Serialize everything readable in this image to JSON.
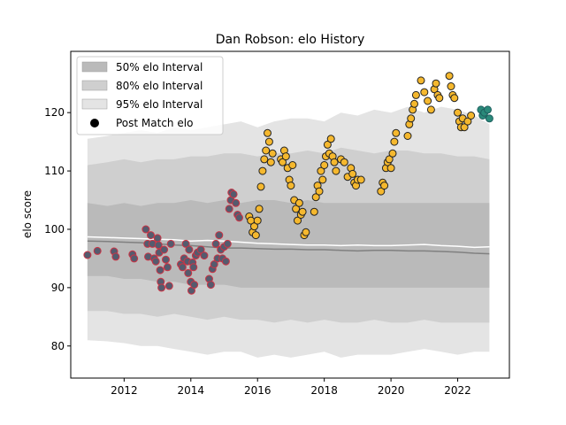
{
  "chart_data": {
    "type": "scatter",
    "title": "Dan Robson: elo History",
    "ylabel": "elo score",
    "xlabel": "",
    "xlim": [
      2010.4,
      2023.55
    ],
    "ylim": [
      74.5,
      130.5
    ],
    "x_ticks": [
      2012,
      2014,
      2016,
      2018,
      2020,
      2022
    ],
    "y_ticks": [
      80,
      90,
      100,
      110,
      120
    ],
    "legend_position": "top-left",
    "legend": [
      {
        "name": "50% elo Interval",
        "color": "#b0b0b0"
      },
      {
        "name": "80% elo Interval",
        "color": "#c8c8c8"
      },
      {
        "name": "95% elo Interval",
        "color": "#e4e4e4"
      },
      {
        "name": "Post Match elo",
        "color": "#000000"
      }
    ],
    "colors": {
      "band95": "#e4e4e4",
      "band80": "#cfcfcf",
      "band50": "#bababa",
      "mean_line": "#ffffff",
      "median_line": "#808080",
      "point_early_fill": "#555b6e",
      "point_early_edge": "#cc3344",
      "point_main_fill": "#f5b82e",
      "point_main_edge": "#222222",
      "point_late_fill": "#2a8a7a",
      "point_late_edge": "#1f5f5f"
    },
    "band_x": [
      2010.9,
      2011.5,
      2012.0,
      2012.5,
      2013.0,
      2013.5,
      2014.0,
      2014.5,
      2015.0,
      2015.5,
      2016.0,
      2016.5,
      2017.0,
      2017.5,
      2018.0,
      2018.5,
      2019.0,
      2019.5,
      2020.0,
      2020.5,
      2021.0,
      2021.5,
      2022.0,
      2022.5,
      2022.95
    ],
    "band95_upper": [
      115.5,
      116.0,
      116.5,
      117.0,
      116.5,
      117.5,
      117.0,
      117.5,
      118.0,
      118.5,
      117.5,
      118.5,
      119.0,
      119.0,
      118.5,
      120.0,
      119.5,
      120.5,
      120.0,
      121.0,
      120.0,
      121.0,
      120.5,
      119.5,
      118.0
    ],
    "band95_lower": [
      81.0,
      80.8,
      80.5,
      80.0,
      80.0,
      79.5,
      79.0,
      78.5,
      79.0,
      79.0,
      78.0,
      78.5,
      78.0,
      78.5,
      79.0,
      78.0,
      78.5,
      78.5,
      78.5,
      79.0,
      79.5,
      79.0,
      78.5,
      79.0,
      79.0
    ],
    "band80_upper": [
      111.0,
      111.5,
      112.0,
      111.5,
      112.0,
      112.0,
      112.5,
      112.5,
      113.0,
      113.0,
      112.5,
      113.0,
      113.0,
      113.5,
      113.0,
      114.0,
      113.5,
      113.0,
      113.5,
      113.5,
      113.0,
      113.0,
      112.5,
      112.5,
      112.0
    ],
    "band80_lower": [
      86.0,
      86.0,
      85.5,
      85.5,
      85.0,
      85.5,
      85.0,
      84.5,
      85.0,
      84.5,
      84.5,
      84.0,
      84.5,
      84.0,
      84.5,
      84.0,
      84.0,
      84.5,
      84.0,
      84.0,
      84.5,
      84.0,
      84.0,
      84.0,
      84.0
    ],
    "band50_upper": [
      104.5,
      104.0,
      104.5,
      104.0,
      104.5,
      104.5,
      105.0,
      104.5,
      105.0,
      104.5,
      105.0,
      105.0,
      104.5,
      105.0,
      104.5,
      104.5,
      104.5,
      104.5,
      104.5,
      104.5,
      104.5,
      104.5,
      104.5,
      104.5,
      104.5
    ],
    "band50_lower": [
      92.0,
      92.0,
      91.5,
      91.5,
      91.0,
      91.0,
      90.5,
      90.5,
      90.5,
      90.0,
      90.0,
      90.0,
      90.0,
      90.0,
      90.0,
      90.0,
      90.0,
      90.0,
      90.0,
      90.0,
      90.0,
      90.0,
      90.0,
      90.0,
      90.0
    ],
    "mean_line": [
      98.7,
      98.6,
      98.5,
      98.4,
      98.3,
      98.2,
      98.0,
      98.1,
      98.0,
      97.8,
      97.6,
      97.5,
      97.4,
      97.3,
      97.3,
      97.2,
      97.3,
      97.2,
      97.2,
      97.3,
      97.4,
      97.2,
      97.1,
      96.9,
      97.0
    ],
    "median_line": [
      98.0,
      97.9,
      97.8,
      97.7,
      97.5,
      97.3,
      97.2,
      97.0,
      96.8,
      96.8,
      96.7,
      96.6,
      96.6,
      96.5,
      96.5,
      96.4,
      96.3,
      96.4,
      96.4,
      96.3,
      96.3,
      96.2,
      96.1,
      95.9,
      95.8
    ],
    "series": [
      {
        "group": "early",
        "points": [
          [
            2010.9,
            95.6
          ],
          [
            2011.2,
            96.3
          ],
          [
            2011.7,
            96.2
          ],
          [
            2011.75,
            95.3
          ],
          [
            2012.25,
            95.7
          ],
          [
            2012.3,
            95.0
          ],
          [
            2012.65,
            100.0
          ],
          [
            2012.7,
            97.5
          ],
          [
            2012.72,
            95.3
          ],
          [
            2012.8,
            99.0
          ],
          [
            2012.85,
            97.5
          ],
          [
            2012.9,
            95.0
          ],
          [
            2012.95,
            94.5
          ],
          [
            2013.0,
            98.5
          ],
          [
            2013.03,
            97.3
          ],
          [
            2013.05,
            96.0
          ],
          [
            2013.08,
            93.0
          ],
          [
            2013.1,
            91.0
          ],
          [
            2013.12,
            90.0
          ],
          [
            2013.2,
            96.5
          ],
          [
            2013.25,
            94.8
          ],
          [
            2013.3,
            93.5
          ],
          [
            2013.35,
            90.3
          ],
          [
            2013.4,
            97.5
          ],
          [
            2013.7,
            94.0
          ],
          [
            2013.75,
            93.5
          ],
          [
            2013.8,
            95.0
          ],
          [
            2013.85,
            97.5
          ],
          [
            2013.9,
            94.5
          ],
          [
            2013.92,
            92.5
          ],
          [
            2013.95,
            96.5
          ],
          [
            2014.0,
            91.0
          ],
          [
            2014.02,
            89.5
          ],
          [
            2014.05,
            94.3
          ],
          [
            2014.08,
            93.5
          ],
          [
            2014.1,
            90.5
          ],
          [
            2014.15,
            95.5
          ],
          [
            2014.2,
            96.0
          ],
          [
            2014.3,
            96.5
          ],
          [
            2014.4,
            95.5
          ],
          [
            2014.55,
            91.5
          ],
          [
            2014.6,
            90.5
          ],
          [
            2014.65,
            93.2
          ],
          [
            2014.7,
            94.0
          ],
          [
            2014.75,
            97.5
          ],
          [
            2014.8,
            95.0
          ],
          [
            2014.85,
            99.0
          ],
          [
            2014.9,
            96.5
          ],
          [
            2014.95,
            95.0
          ],
          [
            2015.0,
            97.0
          ],
          [
            2015.05,
            94.5
          ],
          [
            2015.1,
            97.5
          ],
          [
            2015.15,
            103.5
          ],
          [
            2015.2,
            105.0
          ],
          [
            2015.22,
            106.3
          ],
          [
            2015.28,
            106.0
          ],
          [
            2015.35,
            104.5
          ],
          [
            2015.4,
            102.5
          ],
          [
            2015.45,
            102.0
          ]
        ]
      },
      {
        "group": "main",
        "points": [
          [
            2015.75,
            102.2
          ],
          [
            2015.8,
            101.5
          ],
          [
            2015.85,
            99.5
          ],
          [
            2015.9,
            100.5
          ],
          [
            2015.95,
            99.0
          ],
          [
            2016.0,
            101.5
          ],
          [
            2016.05,
            103.5
          ],
          [
            2016.1,
            107.3
          ],
          [
            2016.15,
            110.0
          ],
          [
            2016.2,
            112.0
          ],
          [
            2016.25,
            113.5
          ],
          [
            2016.3,
            116.5
          ],
          [
            2016.35,
            115.0
          ],
          [
            2016.4,
            111.5
          ],
          [
            2016.45,
            113.0
          ],
          [
            2016.7,
            112.0
          ],
          [
            2016.75,
            111.5
          ],
          [
            2016.8,
            113.5
          ],
          [
            2016.85,
            112.5
          ],
          [
            2016.9,
            110.5
          ],
          [
            2016.95,
            108.5
          ],
          [
            2017.0,
            107.5
          ],
          [
            2017.05,
            111.0
          ],
          [
            2017.1,
            105.0
          ],
          [
            2017.15,
            103.5
          ],
          [
            2017.2,
            101.5
          ],
          [
            2017.25,
            104.5
          ],
          [
            2017.3,
            102.5
          ],
          [
            2017.35,
            103.0
          ],
          [
            2017.4,
            99.0
          ],
          [
            2017.45,
            99.5
          ],
          [
            2017.7,
            103.0
          ],
          [
            2017.75,
            105.5
          ],
          [
            2017.8,
            107.5
          ],
          [
            2017.85,
            106.5
          ],
          [
            2017.9,
            110.0
          ],
          [
            2017.95,
            108.5
          ],
          [
            2018.0,
            111.0
          ],
          [
            2018.05,
            112.5
          ],
          [
            2018.1,
            114.5
          ],
          [
            2018.15,
            113.0
          ],
          [
            2018.2,
            115.5
          ],
          [
            2018.25,
            112.5
          ],
          [
            2018.3,
            111.5
          ],
          [
            2018.35,
            110.0
          ],
          [
            2018.5,
            112.0
          ],
          [
            2018.6,
            111.5
          ],
          [
            2018.7,
            109.0
          ],
          [
            2018.8,
            110.5
          ],
          [
            2018.85,
            109.5
          ],
          [
            2018.9,
            108.0
          ],
          [
            2018.95,
            107.5
          ],
          [
            2019.0,
            108.5
          ],
          [
            2019.1,
            108.5
          ],
          [
            2019.7,
            106.5
          ],
          [
            2019.75,
            108.0
          ],
          [
            2019.8,
            107.5
          ],
          [
            2019.85,
            110.5
          ],
          [
            2019.9,
            111.5
          ],
          [
            2019.95,
            112.0
          ],
          [
            2020.0,
            110.5
          ],
          [
            2020.05,
            113.0
          ],
          [
            2020.1,
            115.0
          ],
          [
            2020.15,
            116.5
          ],
          [
            2020.5,
            116.0
          ],
          [
            2020.55,
            118.0
          ],
          [
            2020.6,
            119.0
          ],
          [
            2020.65,
            120.5
          ],
          [
            2020.7,
            121.5
          ],
          [
            2020.75,
            123.0
          ],
          [
            2020.9,
            125.5
          ],
          [
            2021.0,
            123.5
          ],
          [
            2021.1,
            122.0
          ],
          [
            2021.2,
            120.5
          ],
          [
            2021.3,
            124.0
          ],
          [
            2021.35,
            125.0
          ],
          [
            2021.4,
            123.0
          ],
          [
            2021.45,
            122.5
          ],
          [
            2021.75,
            126.3
          ],
          [
            2021.8,
            124.5
          ],
          [
            2021.85,
            123.0
          ],
          [
            2021.9,
            122.5
          ],
          [
            2022.0,
            120.0
          ],
          [
            2022.05,
            118.5
          ],
          [
            2022.1,
            117.5
          ],
          [
            2022.15,
            119.0
          ],
          [
            2022.2,
            117.5
          ],
          [
            2022.3,
            118.5
          ],
          [
            2022.4,
            119.5
          ]
        ]
      },
      {
        "group": "late",
        "points": [
          [
            2022.7,
            120.5
          ],
          [
            2022.75,
            119.5
          ],
          [
            2022.8,
            120.0
          ],
          [
            2022.9,
            120.5
          ],
          [
            2022.95,
            119.0
          ]
        ]
      }
    ]
  }
}
